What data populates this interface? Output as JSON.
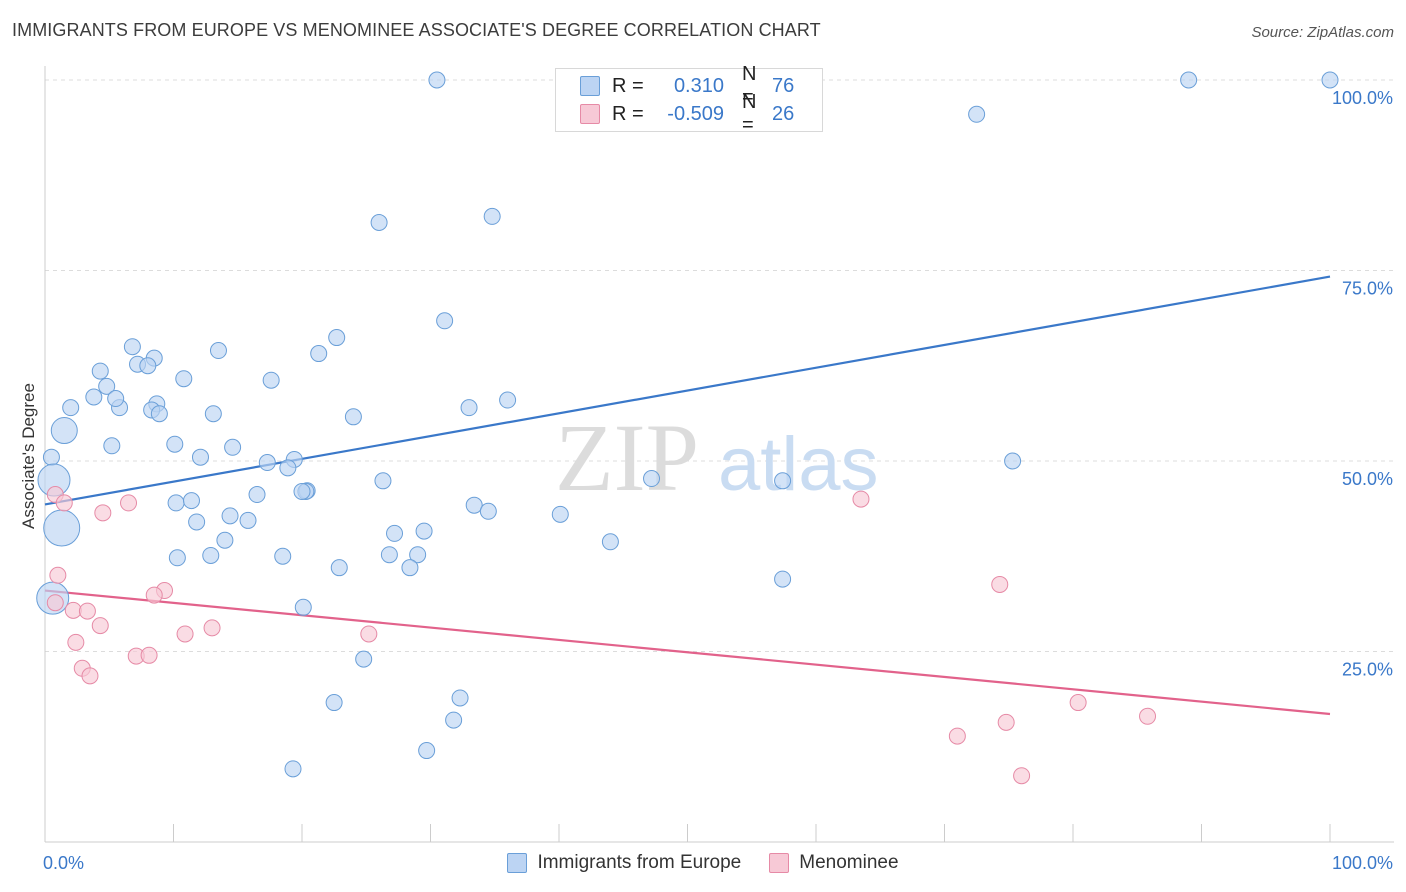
{
  "header": {
    "title": "IMMIGRANTS FROM EUROPE VS MENOMINEE ASSOCIATE'S DEGREE CORRELATION CHART",
    "source": "Source: ZipAtlas.com"
  },
  "watermark": {
    "zip": "ZIP",
    "atlas": "atlas"
  },
  "legend": {
    "rows": [
      {
        "r_label": "R =",
        "r_value": "0.310",
        "n_label": "N =",
        "n_value": "76",
        "color": "#6a9fd8",
        "fill": "#bcd4f3"
      },
      {
        "r_label": "R =",
        "r_value": "-0.509",
        "n_label": "N =",
        "n_value": "26",
        "color": "#e68aa6",
        "fill": "#f7c9d6"
      }
    ]
  },
  "bottom_legend": [
    {
      "label": "Immigrants from Europe",
      "color": "#6a9fd8",
      "fill": "#bcd4f3"
    },
    {
      "label": "Menominee",
      "color": "#e68aa6",
      "fill": "#f7c9d6"
    }
  ],
  "chart_data": {
    "type": "scatter",
    "title": "IMMIGRANTS FROM EUROPE VS MENOMINEE ASSOCIATE'S DEGREE CORRELATION CHART",
    "xlabel": "",
    "ylabel": "Associate's Degree",
    "xlim": [
      0,
      100
    ],
    "ylim": [
      0,
      100
    ],
    "x_tick_labels": [
      "0.0%",
      "100.0%"
    ],
    "y_tick_labels": [
      "25.0%",
      "50.0%",
      "75.0%",
      "100.0%"
    ],
    "y_ticks": [
      25,
      50,
      75,
      100
    ],
    "grid": true,
    "legend_position": "top-center",
    "series": [
      {
        "name": "Immigrants from Europe",
        "color": "#3a78c9",
        "fill": "#bcd4f3",
        "trendline": {
          "x": [
            0,
            100
          ],
          "y": [
            44.3,
            74.2
          ]
        },
        "points": [
          [
            30.5,
            100
          ],
          [
            89.0,
            100
          ],
          [
            100,
            100
          ],
          [
            72.5,
            95.5
          ],
          [
            26.0,
            81.3
          ],
          [
            34.8,
            82.1
          ],
          [
            31.1,
            68.4
          ],
          [
            22.7,
            66.2
          ],
          [
            21.3,
            64.1
          ],
          [
            13.5,
            64.5
          ],
          [
            6.8,
            65.0
          ],
          [
            8.5,
            63.5
          ],
          [
            7.2,
            62.7
          ],
          [
            8.0,
            62.5
          ],
          [
            4.3,
            61.8
          ],
          [
            10.8,
            60.8
          ],
          [
            17.6,
            60.6
          ],
          [
            4.8,
            59.8
          ],
          [
            3.8,
            58.4
          ],
          [
            8.7,
            57.5
          ],
          [
            36.0,
            58.0
          ],
          [
            2.0,
            57.0
          ],
          [
            5.8,
            57.0
          ],
          [
            8.3,
            56.7
          ],
          [
            33.0,
            57.0
          ],
          [
            8.9,
            56.2
          ],
          [
            13.1,
            56.2
          ],
          [
            24.0,
            55.8
          ],
          [
            1.5,
            54.0
          ],
          [
            5.2,
            52.0
          ],
          [
            10.1,
            52.2
          ],
          [
            14.6,
            51.8
          ],
          [
            0.5,
            50.5
          ],
          [
            12.1,
            50.5
          ],
          [
            17.3,
            49.8
          ],
          [
            19.4,
            50.2
          ],
          [
            18.9,
            49.1
          ],
          [
            47.2,
            47.7
          ],
          [
            57.4,
            47.4
          ],
          [
            75.3,
            50.0
          ],
          [
            26.3,
            47.4
          ],
          [
            20.4,
            46.1
          ],
          [
            16.5,
            45.6
          ],
          [
            10.2,
            44.5
          ],
          [
            11.4,
            44.8
          ],
          [
            33.4,
            44.2
          ],
          [
            0.7,
            47.5
          ],
          [
            34.5,
            43.4
          ],
          [
            40.1,
            43.0
          ],
          [
            14.4,
            42.8
          ],
          [
            15.8,
            42.2
          ],
          [
            11.8,
            42.0
          ],
          [
            29.5,
            40.8
          ],
          [
            27.2,
            40.5
          ],
          [
            14.0,
            39.6
          ],
          [
            44.0,
            39.4
          ],
          [
            1.3,
            41.2
          ],
          [
            12.9,
            37.6
          ],
          [
            18.5,
            37.5
          ],
          [
            10.3,
            37.3
          ],
          [
            26.8,
            37.7
          ],
          [
            29.0,
            37.7
          ],
          [
            22.9,
            36.0
          ],
          [
            28.4,
            36.0
          ],
          [
            57.4,
            34.5
          ],
          [
            20.1,
            30.8
          ],
          [
            0.6,
            32.0
          ],
          [
            24.8,
            24.0
          ],
          [
            22.5,
            18.3
          ],
          [
            32.3,
            18.9
          ],
          [
            31.8,
            16.0
          ],
          [
            29.7,
            12.0
          ],
          [
            19.3,
            9.6
          ],
          [
            20.3,
            46.0
          ],
          [
            20.0,
            46.0
          ],
          [
            5.5,
            58.2
          ]
        ]
      },
      {
        "name": "Menominee",
        "color": "#e2628b",
        "fill": "#f7c9d6",
        "trendline": {
          "x": [
            0,
            100
          ],
          "y": [
            33.0,
            16.8
          ]
        },
        "points": [
          [
            0.8,
            45.6
          ],
          [
            1.5,
            44.5
          ],
          [
            6.5,
            44.5
          ],
          [
            4.5,
            43.2
          ],
          [
            63.5,
            45.0
          ],
          [
            1.0,
            35.0
          ],
          [
            9.3,
            33.0
          ],
          [
            8.5,
            32.4
          ],
          [
            74.3,
            33.8
          ],
          [
            0.8,
            31.4
          ],
          [
            2.2,
            30.4
          ],
          [
            3.3,
            30.3
          ],
          [
            4.3,
            28.4
          ],
          [
            13.0,
            28.1
          ],
          [
            10.9,
            27.3
          ],
          [
            25.2,
            27.3
          ],
          [
            2.4,
            26.2
          ],
          [
            7.1,
            24.4
          ],
          [
            8.1,
            24.5
          ],
          [
            2.9,
            22.8
          ],
          [
            3.5,
            21.8
          ],
          [
            80.4,
            18.3
          ],
          [
            85.8,
            16.5
          ],
          [
            74.8,
            15.7
          ],
          [
            71.0,
            13.9
          ],
          [
            76.0,
            8.7
          ]
        ]
      }
    ]
  }
}
